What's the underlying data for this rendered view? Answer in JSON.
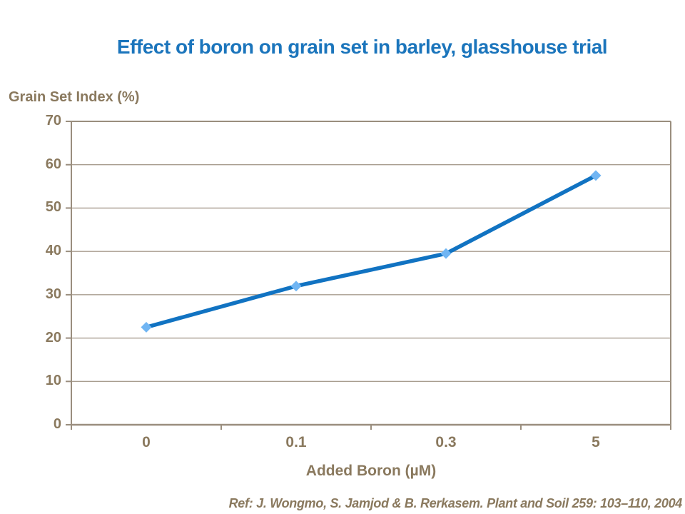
{
  "page": {
    "title": "Effect of boron on grain set in barley, glasshouse trial",
    "reference": "Ref: J. Wongmo, S. Jamjod & B. Rerkasem. Plant and Soil 259: 103–110, 2004"
  },
  "colors": {
    "title_blue": "#1B75BC",
    "line_blue": "#1173C2",
    "marker_blue": "#70B5F3",
    "text_brown": "#8A795E",
    "axis_taupe": "#9A8E7E",
    "grid_taupe": "#A89D8F"
  },
  "chart_data": {
    "type": "line",
    "title": "Effect of boron on grain set in barley, glasshouse trial",
    "xlabel": "Added Boron (µM)",
    "ylabel": "Grain Set Index (%)",
    "categories": [
      "0",
      "0.1",
      "0.3",
      "5"
    ],
    "series": [
      {
        "name": "Grain Set Index",
        "values": [
          22.5,
          32,
          39.5,
          57.5
        ]
      }
    ],
    "ylim": [
      0,
      70
    ],
    "ytick_step": 10,
    "grid": true,
    "legend_position": "none",
    "marker": "diamond"
  }
}
